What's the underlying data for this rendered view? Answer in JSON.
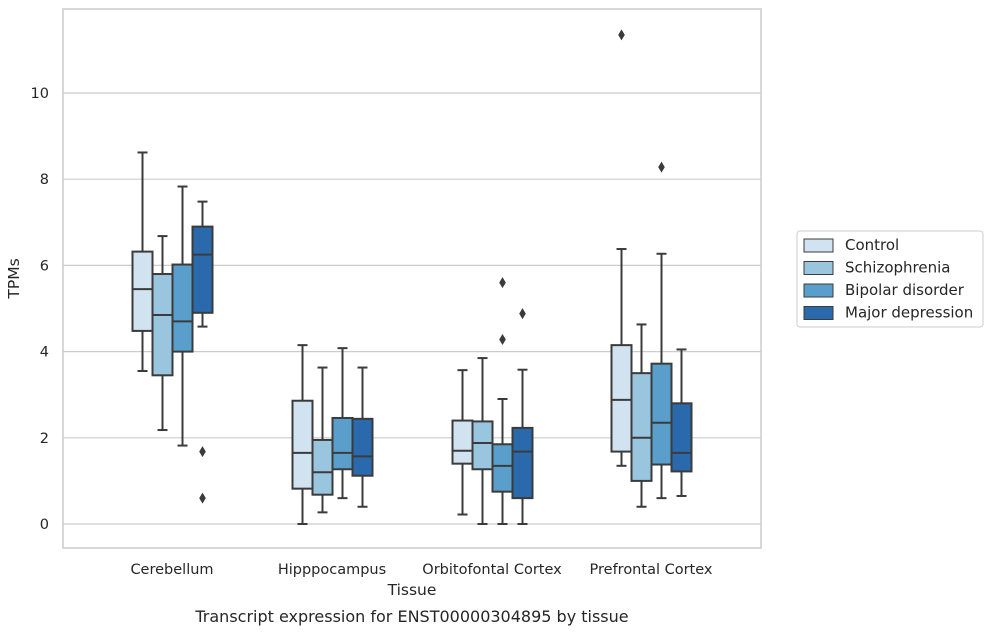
{
  "chart_data": {
    "type": "box",
    "xlabel": "Tissue",
    "ylabel": "TPMs",
    "caption": "Transcript expression for ENST00000304895 by tissue",
    "ylim": [
      -0.55,
      12.0
    ],
    "yticks": [
      0,
      2,
      4,
      6,
      8,
      10
    ],
    "grid": true,
    "legend_position": "right",
    "categories": [
      "Cerebellum",
      "Hipppocampus",
      "Orbitofontal Cortex",
      "Prefrontal Cortex"
    ],
    "series": [
      {
        "name": "Control",
        "color": "#d1e2f1",
        "boxes": [
          {
            "min": 3.55,
            "q1": 4.48,
            "median": 5.45,
            "q3": 6.32,
            "max": 8.62,
            "outliers": []
          },
          {
            "min": 0.0,
            "q1": 0.82,
            "median": 1.65,
            "q3": 2.86,
            "max": 4.15,
            "outliers": []
          },
          {
            "min": 0.22,
            "q1": 1.4,
            "median": 1.7,
            "q3": 2.4,
            "max": 3.57,
            "outliers": []
          },
          {
            "min": 1.35,
            "q1": 1.68,
            "median": 2.88,
            "q3": 4.15,
            "max": 6.38,
            "outliers": [
              11.35
            ]
          }
        ]
      },
      {
        "name": "Schizophrenia",
        "color": "#9ac5df",
        "boxes": [
          {
            "min": 2.18,
            "q1": 3.45,
            "median": 4.85,
            "q3": 5.8,
            "max": 6.68,
            "outliers": []
          },
          {
            "min": 0.27,
            "q1": 0.68,
            "median": 1.2,
            "q3": 1.95,
            "max": 3.63,
            "outliers": []
          },
          {
            "min": 0.0,
            "q1": 1.27,
            "median": 1.88,
            "q3": 2.38,
            "max": 3.85,
            "outliers": []
          },
          {
            "min": 0.4,
            "q1": 1.0,
            "median": 2.0,
            "q3": 3.5,
            "max": 4.63,
            "outliers": []
          }
        ]
      },
      {
        "name": "Bipolar disorder",
        "color": "#5a9fcc",
        "boxes": [
          {
            "min": 1.82,
            "q1": 4.0,
            "median": 4.7,
            "q3": 6.02,
            "max": 7.83,
            "outliers": []
          },
          {
            "min": 0.6,
            "q1": 1.27,
            "median": 1.65,
            "q3": 2.46,
            "max": 4.08,
            "outliers": []
          },
          {
            "min": 0.0,
            "q1": 0.75,
            "median": 1.35,
            "q3": 1.85,
            "max": 2.9,
            "outliers": [
              4.28,
              5.6
            ]
          },
          {
            "min": 0.6,
            "q1": 1.38,
            "median": 2.35,
            "q3": 3.72,
            "max": 6.27,
            "outliers": [
              8.28
            ]
          }
        ]
      },
      {
        "name": "Major depression",
        "color": "#2a6aac",
        "boxes": [
          {
            "min": 4.58,
            "q1": 4.9,
            "median": 6.25,
            "q3": 6.9,
            "max": 7.48,
            "outliers": [
              1.68,
              0.6
            ]
          },
          {
            "min": 0.4,
            "q1": 1.12,
            "median": 1.57,
            "q3": 2.44,
            "max": 3.63,
            "outliers": []
          },
          {
            "min": 0.0,
            "q1": 0.6,
            "median": 1.68,
            "q3": 2.23,
            "max": 3.58,
            "outliers": [
              4.88
            ]
          },
          {
            "min": 0.65,
            "q1": 1.22,
            "median": 1.65,
            "q3": 2.8,
            "max": 4.05,
            "outliers": []
          }
        ]
      }
    ]
  }
}
